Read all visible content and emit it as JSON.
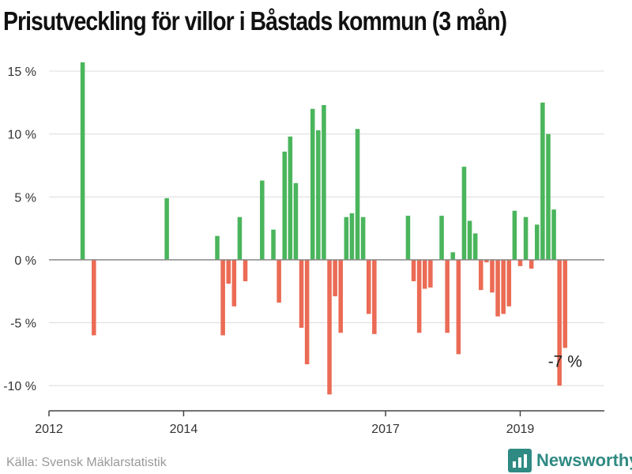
{
  "title": "Prisutveckling för villor i Båstads kommun (3 mån)",
  "source": "Källa: Svensk Mäklarstatistik",
  "brand": {
    "name": "Newsworthy",
    "icon": "bar-chart-logo-icon"
  },
  "colors": {
    "positive": "#4ab55c",
    "negative": "#eb6b55",
    "grid": "#dcdcdc",
    "zero": "#888888",
    "brand": "#2f8a83"
  },
  "chart_data": {
    "type": "bar",
    "title": "Prisutveckling för villor i Båstads kommun (3 mån)",
    "xlabel": "",
    "ylabel": "",
    "unit": "%",
    "ylim": [
      -12,
      15
    ],
    "yticks": [
      15,
      10,
      5,
      0,
      -5,
      -10
    ],
    "ytick_labels": [
      "15 %",
      "10 %",
      "5 %",
      "0 %",
      "-5 %",
      "-10 %"
    ],
    "xlim": [
      "2012-01",
      "2020-04"
    ],
    "xticks": [
      "2012-01",
      "2014-01",
      "2017-01",
      "2019-01"
    ],
    "xtick_labels": [
      "2012",
      "2014",
      "2017",
      "2019"
    ],
    "grid": true,
    "legend": "none",
    "annotation": {
      "text": "-7 %",
      "x": "2019-09"
    },
    "series": [
      {
        "x": [
          "2012-07",
          "2012-09",
          "2013-10",
          "2014-07",
          "2014-08",
          "2014-09",
          "2014-10",
          "2014-11",
          "2014-12",
          "2015-03",
          "2015-05",
          "2015-06",
          "2015-07",
          "2015-08",
          "2015-09",
          "2015-10",
          "2015-11",
          "2015-12",
          "2016-01",
          "2016-02",
          "2016-03",
          "2016-04",
          "2016-05",
          "2016-06",
          "2016-07",
          "2016-08",
          "2016-09",
          "2016-10",
          "2016-11",
          "2016-12",
          "2017-05",
          "2017-06",
          "2017-07",
          "2017-08",
          "2017-09",
          "2017-11",
          "2017-12",
          "2018-01",
          "2018-02",
          "2018-03",
          "2018-04",
          "2018-05",
          "2018-06",
          "2018-07",
          "2018-08",
          "2018-09",
          "2018-10",
          "2018-11",
          "2018-12",
          "2019-01",
          "2019-02",
          "2019-03",
          "2019-04",
          "2019-05",
          "2019-06",
          "2019-07",
          "2019-08",
          "2019-09"
        ],
        "values": [
          15.7,
          -6.0,
          4.9,
          1.9,
          -6.0,
          -1.9,
          -3.7,
          3.4,
          -1.7,
          6.3,
          2.4,
          -3.4,
          8.6,
          9.8,
          6.1,
          -5.4,
          -8.3,
          12.0,
          10.3,
          12.3,
          -10.7,
          -2.9,
          -5.8,
          3.4,
          3.7,
          10.4,
          3.4,
          -4.3,
          -5.9,
          0.0,
          3.5,
          -1.7,
          -5.8,
          -2.3,
          -2.2,
          3.5,
          -5.8,
          0.6,
          -7.5,
          7.4,
          3.1,
          2.1,
          -2.4,
          -0.2,
          -2.6,
          -4.5,
          -4.3,
          -3.7,
          3.9,
          -0.5,
          3.4,
          -0.7,
          2.8,
          12.5,
          10.0,
          4.0,
          -10.0,
          -7.0
        ]
      }
    ]
  }
}
